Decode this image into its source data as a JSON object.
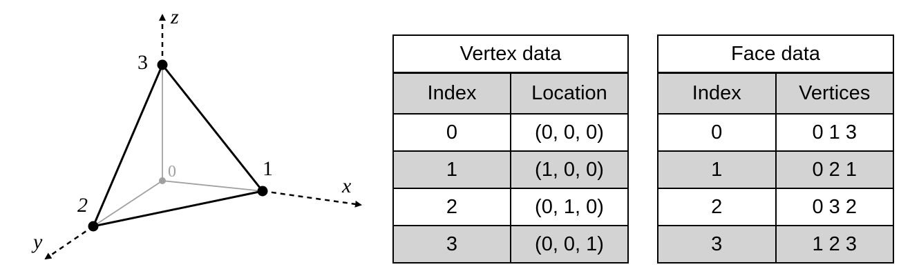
{
  "diagram": {
    "axes": {
      "x_label": "x",
      "y_label": "y",
      "z_label": "z"
    },
    "vertices": [
      {
        "label": "0",
        "visibility": "hidden-grey"
      },
      {
        "label": "1",
        "visibility": "visible"
      },
      {
        "label": "2",
        "visibility": "visible"
      },
      {
        "label": "3",
        "visibility": "visible"
      }
    ],
    "colors": {
      "visible_edge": "#000000",
      "hidden_edge": "#a0a0a0",
      "vertex_dot": "#000000",
      "hidden_vertex_dot": "#a0a0a0"
    }
  },
  "vertex_table": {
    "title": "Vertex data",
    "headers": [
      "Index",
      "Location"
    ],
    "rows": [
      [
        "0",
        "(0, 0, 0)"
      ],
      [
        "1",
        "(1, 0, 0)"
      ],
      [
        "2",
        "(0, 1, 0)"
      ],
      [
        "3",
        "(0, 0, 1)"
      ]
    ]
  },
  "face_table": {
    "title": "Face data",
    "headers": [
      "Index",
      "Vertices"
    ],
    "rows": [
      [
        "0",
        "0 1 3"
      ],
      [
        "1",
        "0 2 1"
      ],
      [
        "2",
        "0 3 2"
      ],
      [
        "3",
        "1 2 3"
      ]
    ]
  },
  "colors": {
    "header_fill": "#d3d3d3",
    "row_fill_alt": "#d3d3d3",
    "border": "#000000"
  }
}
